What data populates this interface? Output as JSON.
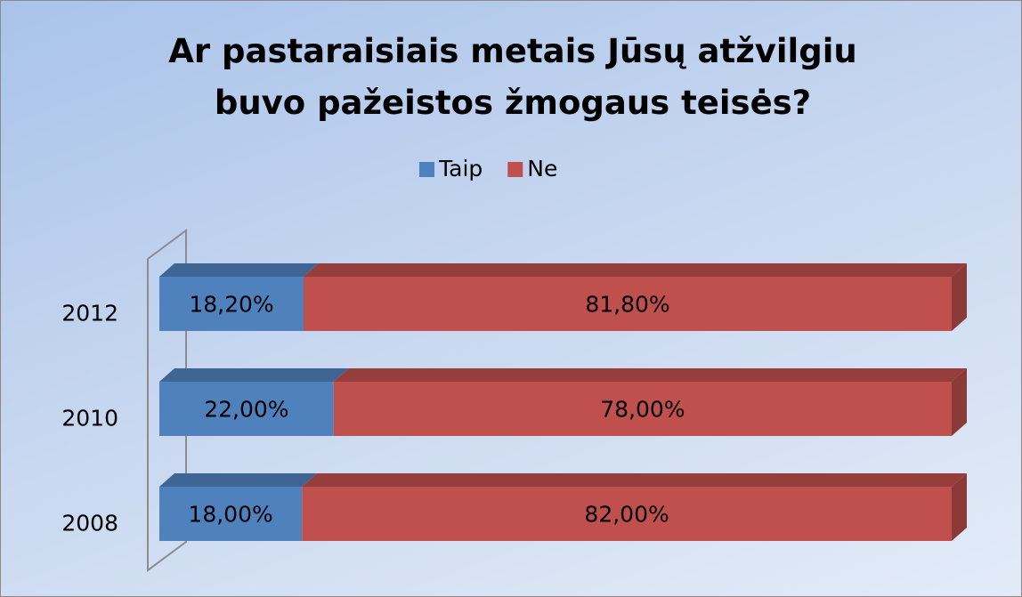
{
  "chart_data": {
    "type": "stacked-bar-horizontal",
    "title": "Ar pastaraisiais metais Jūsų atžvilgiu buvo pažeistos žmogaus teisės?",
    "categories": [
      "2012",
      "2010",
      "2008"
    ],
    "series": [
      {
        "name": "Taip",
        "color": "#4f81bd",
        "values": [
          18.2,
          22,
          18
        ],
        "value_labels": [
          "18,20%",
          "22,00%",
          "18,00%"
        ]
      },
      {
        "name": "Ne",
        "color": "#c0504d",
        "values": [
          81.8,
          78,
          82
        ],
        "value_labels": [
          "81,80%",
          "78,00%",
          "82,00%"
        ]
      }
    ],
    "xlim": [
      0,
      100
    ],
    "legend": "top"
  }
}
